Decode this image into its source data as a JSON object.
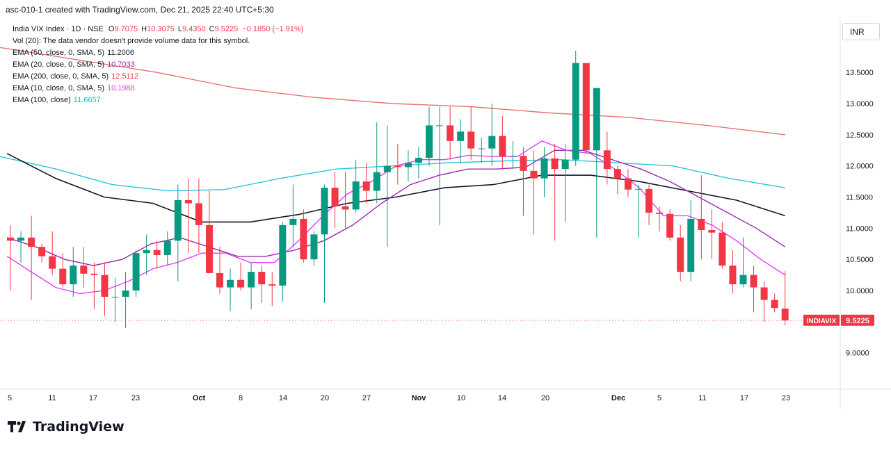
{
  "header": {
    "caption": "asc-010-1 created with TradingView.com, Dec 21, 2025 22:40 UTC+5:30"
  },
  "legend": {
    "symbol": "India VIX Index · 1D · NSE",
    "ohlc": [
      {
        "k": "O",
        "v": "9.7075"
      },
      {
        "k": "H",
        "v": "10.3075"
      },
      {
        "k": "L",
        "v": "9.4350"
      },
      {
        "k": "C",
        "v": "9.5225"
      }
    ],
    "change": "−0.1850 (−1.91%)",
    "volume_note": "Vol (20): The data vendor doesn't provide volume data for this symbol.",
    "indicators": [
      {
        "label": "EMA (50, close, 0, SMA, 5)",
        "value": "11.2006",
        "color": "#131722"
      },
      {
        "label": "EMA (20, close, 0, SMA, 5)",
        "value": "10.7033",
        "color": "#9c27b0"
      },
      {
        "label": "EMA (200, close, 0, SMA, 5)",
        "value": "12.5112",
        "color": "#f23645"
      },
      {
        "label": "EMA (10, close, 0, SMA, 5)",
        "value": "10.1988",
        "color": "#e040fb"
      },
      {
        "label": "EMA (100, close)",
        "value": "11.6657",
        "color": "#00bcd4"
      }
    ]
  },
  "currency": "INR",
  "branding": {
    "logo_text": "TradingView"
  },
  "chart_data": {
    "type": "candlestick",
    "symbol_tag": "INDIAVIX",
    "last_price": "9.5225",
    "ylim": [
      8.55,
      14.35
    ],
    "y_ticks": [
      "9.0000",
      "10.0000",
      "10.5000",
      "11.0000",
      "11.5000",
      "12.0000",
      "12.5000",
      "13.0000",
      "13.5000"
    ],
    "x_ticks": [
      {
        "label": "5",
        "bold": false
      },
      {
        "label": "11",
        "bold": false
      },
      {
        "label": "17",
        "bold": false
      },
      {
        "label": "23",
        "bold": false
      },
      {
        "label": "Oct",
        "bold": true
      },
      {
        "label": "8",
        "bold": false
      },
      {
        "label": "14",
        "bold": false
      },
      {
        "label": "20",
        "bold": false
      },
      {
        "label": "27",
        "bold": false
      },
      {
        "label": "Nov",
        "bold": true
      },
      {
        "label": "10",
        "bold": false
      },
      {
        "label": "14",
        "bold": false
      },
      {
        "label": "20",
        "bold": false
      },
      {
        "label": "Dec",
        "bold": true
      },
      {
        "label": "5",
        "bold": false
      },
      {
        "label": "11",
        "bold": false
      },
      {
        "label": "17",
        "bold": false
      },
      {
        "label": "23",
        "bold": false
      }
    ],
    "colors": {
      "up": "#089981",
      "down": "#f23645",
      "ema50": "#131722",
      "ema20": "#9c27b0",
      "ema200": "#e57373",
      "ema10": "#e040fb",
      "ema100": "#26c6da"
    },
    "candles": [
      {
        "o": 10.85,
        "h": 11.05,
        "l": 10.0,
        "c": 10.8
      },
      {
        "o": 10.8,
        "h": 10.95,
        "l": 10.45,
        "c": 10.85
      },
      {
        "o": 10.85,
        "h": 11.2,
        "l": 9.85,
        "c": 10.7
      },
      {
        "o": 10.7,
        "h": 10.75,
        "l": 10.45,
        "c": 10.55
      },
      {
        "o": 10.55,
        "h": 10.95,
        "l": 10.25,
        "c": 10.35
      },
      {
        "o": 10.35,
        "h": 10.6,
        "l": 10.05,
        "c": 10.1
      },
      {
        "o": 10.1,
        "h": 10.7,
        "l": 9.9,
        "c": 10.4
      },
      {
        "o": 10.4,
        "h": 10.7,
        "l": 10.05,
        "c": 10.27
      },
      {
        "o": 10.27,
        "h": 10.45,
        "l": 9.7,
        "c": 10.25
      },
      {
        "o": 10.25,
        "h": 10.45,
        "l": 9.6,
        "c": 9.9
      },
      {
        "o": 9.9,
        "h": 10.2,
        "l": 9.5,
        "c": 9.9
      },
      {
        "o": 9.9,
        "h": 10.3,
        "l": 9.4,
        "c": 10.0
      },
      {
        "o": 10.0,
        "h": 10.65,
        "l": 9.9,
        "c": 10.6
      },
      {
        "o": 10.6,
        "h": 10.9,
        "l": 10.25,
        "c": 10.65
      },
      {
        "o": 10.65,
        "h": 10.8,
        "l": 10.35,
        "c": 10.57
      },
      {
        "o": 10.57,
        "h": 10.95,
        "l": 10.4,
        "c": 10.8
      },
      {
        "o": 10.8,
        "h": 11.7,
        "l": 10.15,
        "c": 11.45
      },
      {
        "o": 11.45,
        "h": 11.8,
        "l": 10.6,
        "c": 11.4
      },
      {
        "o": 11.4,
        "h": 11.8,
        "l": 10.6,
        "c": 11.05
      },
      {
        "o": 11.05,
        "h": 11.6,
        "l": 10.3,
        "c": 10.28
      },
      {
        "o": 10.28,
        "h": 10.7,
        "l": 9.95,
        "c": 10.05
      },
      {
        "o": 10.05,
        "h": 10.35,
        "l": 9.67,
        "c": 10.17
      },
      {
        "o": 10.17,
        "h": 10.45,
        "l": 10.0,
        "c": 10.05
      },
      {
        "o": 10.05,
        "h": 10.45,
        "l": 9.7,
        "c": 10.3
      },
      {
        "o": 10.3,
        "h": 10.4,
        "l": 9.8,
        "c": 10.1
      },
      {
        "o": 10.1,
        "h": 10.3,
        "l": 9.75,
        "c": 10.08
      },
      {
        "o": 10.08,
        "h": 11.1,
        "l": 9.82,
        "c": 11.05
      },
      {
        "o": 11.05,
        "h": 11.7,
        "l": 10.7,
        "c": 11.15
      },
      {
        "o": 11.15,
        "h": 11.3,
        "l": 10.45,
        "c": 10.5
      },
      {
        "o": 10.5,
        "h": 10.95,
        "l": 10.4,
        "c": 10.9
      },
      {
        "o": 10.9,
        "h": 11.7,
        "l": 9.8,
        "c": 11.65
      },
      {
        "o": 11.65,
        "h": 11.9,
        "l": 11.0,
        "c": 11.35
      },
      {
        "o": 11.35,
        "h": 11.9,
        "l": 11.0,
        "c": 11.3
      },
      {
        "o": 11.3,
        "h": 12.1,
        "l": 11.25,
        "c": 11.75
      },
      {
        "o": 11.75,
        "h": 12.05,
        "l": 11.4,
        "c": 11.6
      },
      {
        "o": 11.6,
        "h": 12.7,
        "l": 11.4,
        "c": 11.9
      },
      {
        "o": 11.9,
        "h": 12.65,
        "l": 10.7,
        "c": 12.0
      },
      {
        "o": 12.0,
        "h": 12.35,
        "l": 11.7,
        "c": 11.98
      },
      {
        "o": 11.98,
        "h": 12.25,
        "l": 11.75,
        "c": 12.05
      },
      {
        "o": 12.05,
        "h": 12.3,
        "l": 11.8,
        "c": 12.13
      },
      {
        "o": 12.13,
        "h": 12.95,
        "l": 12.0,
        "c": 12.65
      },
      {
        "o": 12.65,
        "h": 12.95,
        "l": 11.05,
        "c": 12.65
      },
      {
        "o": 12.65,
        "h": 12.95,
        "l": 12.1,
        "c": 12.4
      },
      {
        "o": 12.4,
        "h": 12.75,
        "l": 12.05,
        "c": 12.55
      },
      {
        "o": 12.55,
        "h": 12.95,
        "l": 12.1,
        "c": 12.28
      },
      {
        "o": 12.28,
        "h": 12.45,
        "l": 12.05,
        "c": 12.28
      },
      {
        "o": 12.28,
        "h": 13.0,
        "l": 12.0,
        "c": 12.48
      },
      {
        "o": 12.48,
        "h": 12.8,
        "l": 11.95,
        "c": 12.15
      },
      {
        "o": 12.15,
        "h": 12.4,
        "l": 11.95,
        "c": 12.16
      },
      {
        "o": 12.16,
        "h": 12.3,
        "l": 11.2,
        "c": 11.92
      },
      {
        "o": 11.92,
        "h": 12.25,
        "l": 10.9,
        "c": 11.8
      },
      {
        "o": 11.8,
        "h": 12.3,
        "l": 11.5,
        "c": 12.12
      },
      {
        "o": 12.12,
        "h": 12.35,
        "l": 10.8,
        "c": 11.95
      },
      {
        "o": 11.95,
        "h": 12.35,
        "l": 11.1,
        "c": 12.1
      },
      {
        "o": 12.1,
        "h": 13.85,
        "l": 12.0,
        "c": 13.65
      },
      {
        "o": 13.65,
        "h": 13.65,
        "l": 12.2,
        "c": 12.25
      },
      {
        "o": 12.25,
        "h": 13.2,
        "l": 10.85,
        "c": 13.25
      },
      {
        "o": 12.25,
        "h": 12.55,
        "l": 11.7,
        "c": 11.95
      },
      {
        "o": 11.95,
        "h": 12.0,
        "l": 11.55,
        "c": 11.8
      },
      {
        "o": 11.8,
        "h": 11.95,
        "l": 11.5,
        "c": 11.62
      },
      {
        "o": 11.62,
        "h": 11.7,
        "l": 10.85,
        "c": 11.63
      },
      {
        "o": 11.63,
        "h": 11.7,
        "l": 11.05,
        "c": 11.25
      },
      {
        "o": 11.25,
        "h": 11.35,
        "l": 10.95,
        "c": 11.23
      },
      {
        "o": 11.23,
        "h": 11.3,
        "l": 10.8,
        "c": 10.85
      },
      {
        "o": 10.85,
        "h": 11.05,
        "l": 10.15,
        "c": 10.3
      },
      {
        "o": 10.3,
        "h": 11.45,
        "l": 10.15,
        "c": 11.15
      },
      {
        "o": 11.15,
        "h": 11.85,
        "l": 10.5,
        "c": 10.97
      },
      {
        "o": 10.97,
        "h": 11.3,
        "l": 10.5,
        "c": 10.93
      },
      {
        "o": 10.93,
        "h": 11.1,
        "l": 10.35,
        "c": 10.4
      },
      {
        "o": 10.4,
        "h": 10.65,
        "l": 9.95,
        "c": 10.1
      },
      {
        "o": 10.1,
        "h": 10.85,
        "l": 10.05,
        "c": 10.25
      },
      {
        "o": 10.25,
        "h": 10.4,
        "l": 9.65,
        "c": 10.05
      },
      {
        "o": 10.05,
        "h": 10.15,
        "l": 9.5,
        "c": 9.85
      },
      {
        "o": 9.85,
        "h": 9.95,
        "l": 9.65,
        "c": 9.72
      },
      {
        "o": 9.71,
        "h": 10.31,
        "l": 9.44,
        "c": 9.52
      }
    ],
    "ema10": [
      10.55,
      10.3,
      10.05,
      9.95,
      10.0,
      10.15,
      10.35,
      10.45,
      10.6,
      10.6,
      10.45,
      10.45,
      10.8,
      11.2,
      11.55,
      11.75,
      12.0,
      12.1,
      12.1,
      12.17,
      12.15,
      12.15,
      12.4,
      12.25,
      12.2,
      11.95,
      11.65,
      11.2,
      11.2,
      11.05,
      10.8,
      10.5,
      10.25
    ],
    "ema20": [
      10.85,
      10.7,
      10.5,
      10.4,
      10.5,
      10.75,
      10.85,
      10.7,
      10.55,
      10.55,
      10.65,
      10.8,
      11.05,
      11.4,
      11.7,
      11.85,
      11.95,
      11.95,
      11.98,
      12.25,
      12.25,
      12.1,
      11.95,
      11.75,
      11.5,
      11.25,
      11.0,
      10.7
    ],
    "ema50": [
      12.2,
      11.8,
      11.5,
      11.4,
      11.1,
      11.1,
      11.22,
      11.4,
      11.5,
      11.65,
      11.7,
      11.85,
      11.85,
      11.75,
      11.6,
      11.45,
      11.2
    ],
    "ema100": [
      12.15,
      11.95,
      11.7,
      11.6,
      11.62,
      11.8,
      11.95,
      12.0,
      12.05,
      12.08,
      12.1,
      12.05,
      12.0,
      11.8,
      11.65
    ],
    "ema200": [
      13.9,
      13.7,
      13.5,
      13.25,
      13.1,
      13.0,
      12.95,
      12.85,
      12.78,
      12.65,
      12.5
    ]
  }
}
